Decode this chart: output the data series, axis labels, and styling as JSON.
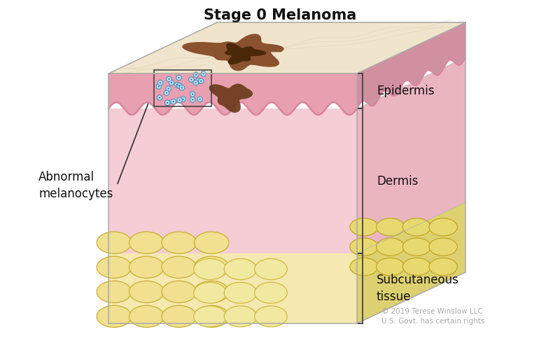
{
  "title": "Stage 0 Melanoma",
  "title_fontsize": 15,
  "title_fontweight": "bold",
  "background_color": "#ffffff",
  "copyright_text": "© 2019 Terese Winslow LLC\nU.S. Govt. has certain rights",
  "copyright_fontsize": 7.5,
  "labels": {
    "epidermis": "Epidermis",
    "dermis": "Dermis",
    "subcutaneous": "Subcutaneous\ntissue",
    "abnormal": "Abnormal\nmelanocytes"
  },
  "colors": {
    "skin_top_face": "#f0e5cc",
    "skin_top_face_edge": "#d8c9a8",
    "epidermis_pink": "#d9849a",
    "epidermis_fill": "#e8a0b0",
    "dermis_front": "#f5cdd4",
    "dermis_right": "#ebb5c0",
    "subcutaneous_yellow": "#e8d878",
    "subcutaneous_shadow": "#d4c050",
    "subcutaneous_right": "#d0b840",
    "melanoma_brown": "#8b5230",
    "melanoma_dark": "#4a2808",
    "melanoma_reddish": "#7a3820",
    "melanocyte_blue": "#b8dff0",
    "melanocyte_dot": "#3377aa",
    "box_outline": "#444444",
    "label_line": "#222222",
    "bracket_color": "#444444",
    "edge_color": "#c0b0a0",
    "right_face_dermis": "#dda0b0"
  }
}
